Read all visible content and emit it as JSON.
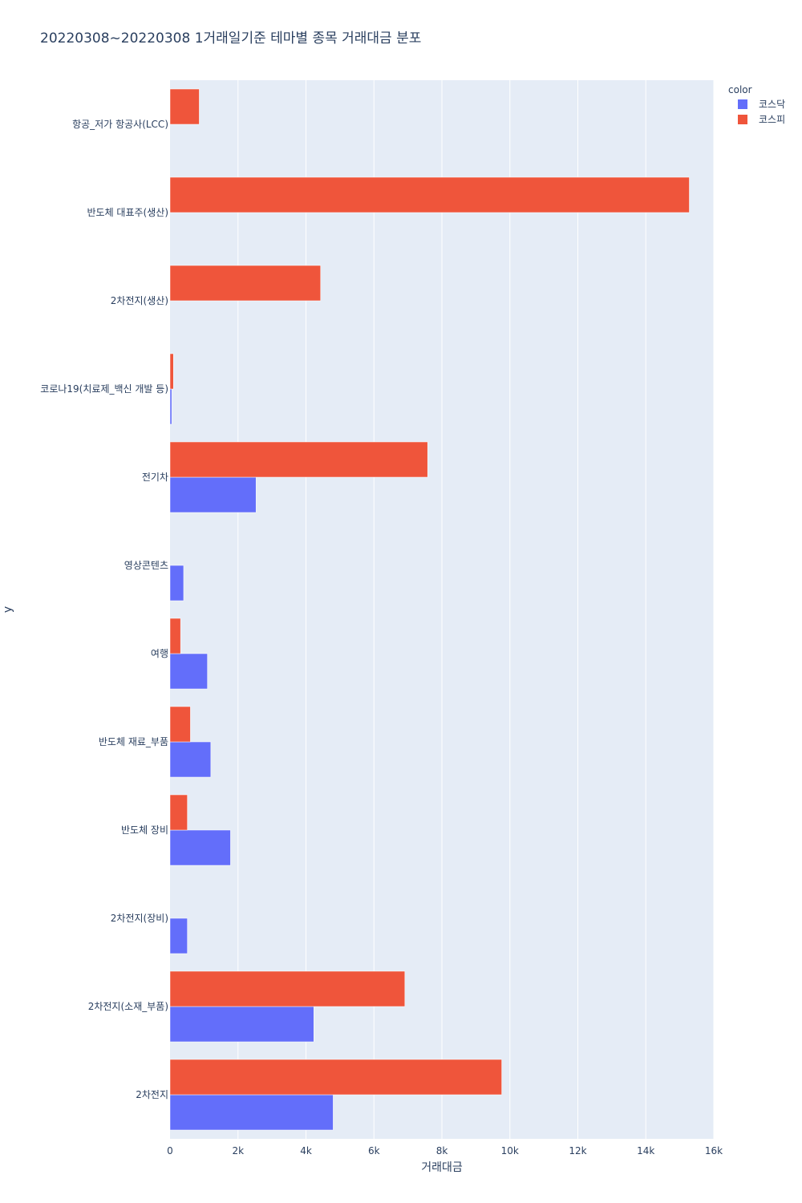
{
  "chart_data": {
    "type": "bar",
    "orientation": "horizontal",
    "barmode": "group",
    "title": "20220308~20220308 1거래일기준 테마별 종목 거래대금 분포",
    "xlabel": "거래대금",
    "ylabel": "y",
    "xlim": [
      0,
      16000
    ],
    "xticks": [
      0,
      2000,
      4000,
      6000,
      8000,
      10000,
      12000,
      14000,
      16000
    ],
    "xtick_labels": [
      "0",
      "2k",
      "4k",
      "6k",
      "8k",
      "10k",
      "12k",
      "14k",
      "16k"
    ],
    "categories": [
      "2차전지",
      "2차전지(소재_부품)",
      "2차전지(장비)",
      "반도체 장비",
      "반도체 재료_부품",
      "여행",
      "영상콘텐츠",
      "전기차",
      "코로나19(치료제_백신 개발 등)",
      "2차전지(생산)",
      "반도체 대표주(생산)",
      "항공_저가 항공사(LCC)"
    ],
    "legend_title": "color",
    "legend_position": "top-right",
    "grid": true,
    "series": [
      {
        "name": "코스닥",
        "color": "#636efa",
        "values": [
          4800,
          4230,
          510,
          1780,
          1200,
          1100,
          400,
          2530,
          50,
          null,
          null,
          null
        ]
      },
      {
        "name": "코스피",
        "color": "#ef553b",
        "values": [
          9760,
          6910,
          null,
          510,
          600,
          310,
          null,
          7580,
          100,
          4430,
          15280,
          860
        ]
      }
    ]
  }
}
